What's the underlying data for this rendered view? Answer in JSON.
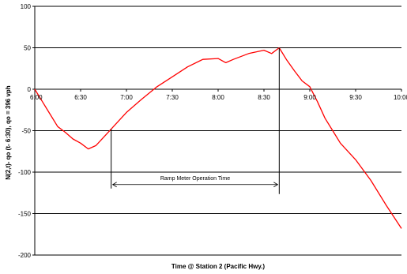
{
  "chart_data": {
    "type": "line",
    "title": "",
    "xlabel": "Time @ Station 2 (Pacific Hwy.)",
    "ylabel": "N(2,t)- qo (t- 6:30), qo = 396 vph",
    "xlim": [
      "6:00",
      "10:00"
    ],
    "ylim": [
      -200,
      100
    ],
    "yticks": [
      100,
      50,
      0,
      -50,
      -100,
      -150,
      -200
    ],
    "xtick_labels": [
      "6:00",
      "6:30",
      "7:00",
      "7:30",
      "8:00",
      "8:30",
      "9:00",
      "9:30",
      "10:00"
    ],
    "grid": "horizontal",
    "series": [
      {
        "color": "#ff0000",
        "x": [
          "6:00",
          "6:05",
          "6:10",
          "6:15",
          "6:20",
          "6:25",
          "6:30",
          "6:35",
          "6:40",
          "6:45",
          "6:50",
          "6:55",
          "7:00",
          "7:10",
          "7:20",
          "7:30",
          "7:40",
          "7:50",
          "8:00",
          "8:05",
          "8:10",
          "8:20",
          "8:30",
          "8:35",
          "8:40",
          "8:45",
          "8:50",
          "8:55",
          "9:00",
          "9:05",
          "9:10",
          "9:15",
          "9:20",
          "9:30",
          "9:40",
          "9:50",
          "10:00"
        ],
        "y": [
          0,
          -15,
          -30,
          -45,
          -52,
          -60,
          -65,
          -72,
          -68,
          -58,
          -48,
          -38,
          -28,
          -12,
          3,
          15,
          27,
          36,
          37,
          32,
          36,
          43,
          47,
          43,
          50,
          35,
          22,
          10,
          3,
          -15,
          -35,
          -50,
          -65,
          -85,
          -110,
          -140,
          -168
        ]
      }
    ],
    "annotations": [
      {
        "text": "Ramp Meter Operation Time",
        "from": "6:50",
        "to": "8:40",
        "y": -115
      }
    ]
  }
}
